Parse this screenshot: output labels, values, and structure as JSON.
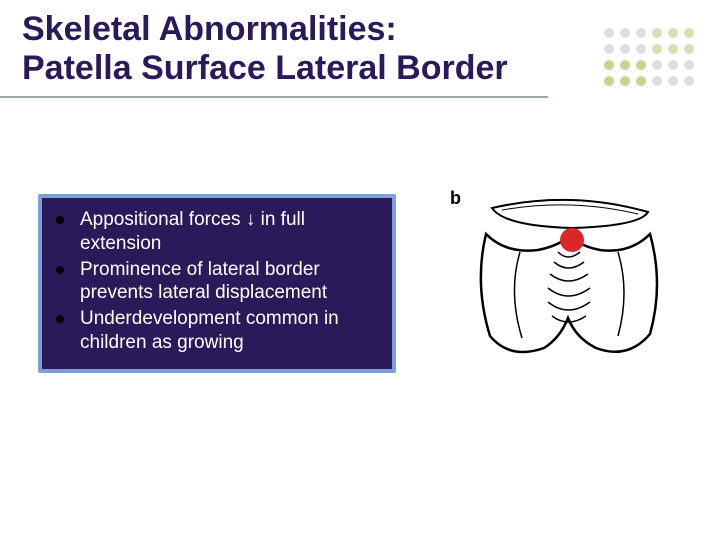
{
  "title_line1": "Skeletal Abnormalities:",
  "title_line2": "Patella Surface Lateral Border",
  "title_color": "#2b1a5a",
  "underline_color": "#a0a0a8",
  "dot_grid": {
    "rows": 4,
    "cols": 6,
    "colors": [
      [
        "#dedede",
        "#dedede",
        "#dedede",
        "#d8e2b8",
        "#d8e2b8",
        "#d8e2b8"
      ],
      [
        "#dedede",
        "#dedede",
        "#dedede",
        "#d8e2b8",
        "#d8e2b8",
        "#d8e2b8"
      ],
      [
        "#c7d490",
        "#c7d490",
        "#c7d490",
        "#dedede",
        "#dedede",
        "#dedede"
      ],
      [
        "#c7d490",
        "#c7d490",
        "#c7d490",
        "#dedede",
        "#dedede",
        "#dedede"
      ]
    ]
  },
  "content_box": {
    "outer_color": "#7da0d8",
    "inner_color": "#2b1a5a",
    "text_color": "#ffffff",
    "bullet_color": "#000000",
    "font_size": 19,
    "bullets": [
      "Appositional forces ↓ in full extension",
      "Prominence of lateral border prevents lateral displacement",
      "Underdevelopment common in children as growing"
    ]
  },
  "figure": {
    "label": "b",
    "red_dot_color": "#da2727",
    "stroke": "#000000",
    "hatch_color": "#000000"
  }
}
